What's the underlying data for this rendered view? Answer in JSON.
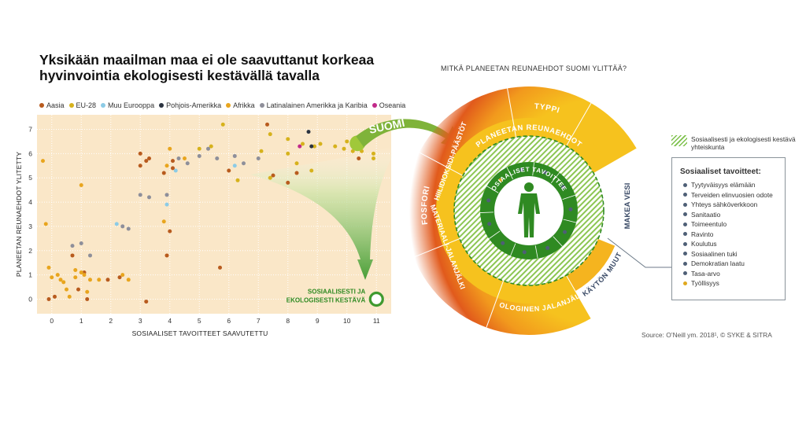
{
  "title_line1": "Yksikään maailman maa ei ole saavuttanut korkeaa",
  "title_line2": "hyvinvointia ekologisesti kestävällä tavalla",
  "legend": [
    {
      "label": "Aasia",
      "color": "#b85b1e"
    },
    {
      "label": "EU-28",
      "color": "#d6b21c"
    },
    {
      "label": "Muu Eurooppa",
      "color": "#8ccbe6"
    },
    {
      "label": "Pohjois-Amerikka",
      "color": "#2b3340"
    },
    {
      "label": "Afrikka",
      "color": "#e8a51e"
    },
    {
      "label": "Latinalainen Amerikka ja Karibia",
      "color": "#8e8f9a"
    },
    {
      "label": "Oseania",
      "color": "#c12a8a"
    }
  ],
  "right_question": "MITKÄ PLANEETAN REUNAEHDOT SUOMI YLITTÄÄ?",
  "finland_label": "SUOMI",
  "sustainable_label_line1": "SOSIAALISESTI JA",
  "sustainable_label_line2": "EKOLOGISESTI KESTÄVÄ",
  "wheel": {
    "outer_labels": [
      "FOSFORI",
      "TYPPI",
      "MAKEA VESI",
      "MAANKÄYTÖN MUUTOKSET",
      "EKOLOGINEN JALANJÄLKI",
      "MATERIAALI-JALANJÄLKI",
      "HIILIDIOKSIDI-PÄÄSTÖT"
    ],
    "ring_label": "PLANEETAN REUNAEHDOT",
    "inner_label": "SOSIAALISET TAVOITTEET"
  },
  "hatch_key_label": "Sosiaalisesti ja ekologisesti kestävä yhteiskunta",
  "key_title": "Sosiaaliset tavoitteet:",
  "key_items": [
    {
      "label": "Tyytyväisyys elämään",
      "color": "#4e5f76"
    },
    {
      "label": "Terveiden elinvuosien odote",
      "color": "#4e5f76"
    },
    {
      "label": "Yhteys sähköverkkoon",
      "color": "#4e5f76"
    },
    {
      "label": "Sanitaatio",
      "color": "#4e5f76"
    },
    {
      "label": "Toimeentulo",
      "color": "#4e5f76"
    },
    {
      "label": "Ravinto",
      "color": "#4e5f76"
    },
    {
      "label": "Koulutus",
      "color": "#4e5f76"
    },
    {
      "label": "Sosiaalinen tuki",
      "color": "#4e5f76"
    },
    {
      "label": "Demokratian laatu",
      "color": "#4e5f76"
    },
    {
      "label": "Tasa-arvo",
      "color": "#4e5f76"
    },
    {
      "label": "Työllisyys",
      "color": "#e0a81e"
    }
  ],
  "source": "Source: O’Neill ym. 2018¹, © SYKE & SITRA",
  "chart_data": {
    "type": "scatter",
    "xlabel": "SOSIAALISET TAVOITTEET SAAVUTETTU",
    "ylabel": "PLANEETAN REUNAEHDOT YLITETTY",
    "xlim": [
      -0.5,
      11.5
    ],
    "ylim": [
      -0.6,
      7.6
    ],
    "xticks": [
      0,
      1,
      2,
      3,
      4,
      5,
      6,
      7,
      8,
      9,
      10,
      11
    ],
    "yticks": [
      0,
      1,
      2,
      3,
      4,
      5,
      6,
      7
    ],
    "grid": true,
    "series": [
      {
        "name": "Aasia",
        "color": "#b85b1e",
        "points": [
          [
            -0.1,
            0
          ],
          [
            0.1,
            0.1
          ],
          [
            0.7,
            1.8
          ],
          [
            0.9,
            0.4
          ],
          [
            1.1,
            1.1
          ],
          [
            1.2,
            0
          ],
          [
            1.9,
            0.8
          ],
          [
            2.3,
            0.9
          ],
          [
            3.0,
            6.0
          ],
          [
            3.2,
            5.7
          ],
          [
            3.3,
            5.8
          ],
          [
            3.2,
            -0.1
          ],
          [
            3.8,
            5.2
          ],
          [
            4.0,
            2.8
          ],
          [
            3.9,
            1.8
          ],
          [
            4.1,
            5.7
          ],
          [
            5.7,
            1.3
          ],
          [
            6.0,
            5.3
          ],
          [
            7.3,
            7.2
          ],
          [
            7.5,
            5.1
          ],
          [
            8.0,
            4.8
          ],
          [
            8.3,
            5.2
          ],
          [
            10.4,
            5.8
          ],
          [
            4.1,
            5.4
          ],
          [
            3.0,
            5.5
          ]
        ]
      },
      {
        "name": "EU-28",
        "color": "#d6b21c",
        "points": [
          [
            5.0,
            6.2
          ],
          [
            5.4,
            6.3
          ],
          [
            5.8,
            7.2
          ],
          [
            6.3,
            4.9
          ],
          [
            7.1,
            6.1
          ],
          [
            7.4,
            6.8
          ],
          [
            7.4,
            5.0
          ],
          [
            8.0,
            6.6
          ],
          [
            8.0,
            6.0
          ],
          [
            8.3,
            5.6
          ],
          [
            8.5,
            6.4
          ],
          [
            8.9,
            6.3
          ],
          [
            9.1,
            6.4
          ],
          [
            9.6,
            6.3
          ],
          [
            9.9,
            6.2
          ],
          [
            10.0,
            6.5
          ],
          [
            10.2,
            6.1
          ],
          [
            10.5,
            6.1
          ],
          [
            10.9,
            5.8
          ],
          [
            10.9,
            6.0
          ],
          [
            8.8,
            5.3
          ]
        ]
      },
      {
        "name": "Muu Eurooppa",
        "color": "#8ccbe6",
        "points": [
          [
            2.2,
            3.1
          ],
          [
            3.9,
            3.9
          ],
          [
            4.2,
            5.3
          ],
          [
            6.2,
            5.5
          ]
        ]
      },
      {
        "name": "Pohjois-Amerikka",
        "color": "#2b3340",
        "points": [
          [
            8.7,
            6.9
          ],
          [
            8.8,
            6.3
          ]
        ]
      },
      {
        "name": "Afrikka",
        "color": "#e8a51e",
        "points": [
          [
            -0.3,
            5.7
          ],
          [
            -0.2,
            3.1
          ],
          [
            -0.1,
            1.3
          ],
          [
            0,
            0.9
          ],
          [
            0.2,
            1.0
          ],
          [
            0.3,
            0.8
          ],
          [
            0.4,
            0.7
          ],
          [
            0.5,
            0.4
          ],
          [
            0.6,
            0.1
          ],
          [
            0.8,
            1.2
          ],
          [
            0.8,
            0.9
          ],
          [
            1.0,
            1.1
          ],
          [
            1.1,
            1.0
          ],
          [
            1.2,
            0.3
          ],
          [
            1.3,
            0.8
          ],
          [
            1.6,
            0.8
          ],
          [
            2.4,
            1.0
          ],
          [
            2.6,
            0.8
          ],
          [
            1.0,
            4.7
          ],
          [
            3.8,
            3.2
          ],
          [
            3.9,
            5.5
          ],
          [
            4.0,
            6.2
          ],
          [
            4.5,
            5.8
          ]
        ]
      },
      {
        "name": "Latinalainen Amerikka ja Karibia",
        "color": "#8e8f9a",
        "points": [
          [
            0.7,
            2.2
          ],
          [
            1.0,
            2.3
          ],
          [
            1.3,
            1.8
          ],
          [
            2.6,
            2.9
          ],
          [
            3.0,
            4.3
          ],
          [
            3.3,
            4.2
          ],
          [
            3.9,
            4.3
          ],
          [
            4.3,
            5.8
          ],
          [
            4.6,
            5.6
          ],
          [
            5.0,
            5.9
          ],
          [
            5.3,
            6.2
          ],
          [
            5.6,
            5.8
          ],
          [
            6.2,
            5.9
          ],
          [
            6.5,
            5.6
          ],
          [
            7.0,
            5.8
          ],
          [
            2.4,
            3.0
          ]
        ]
      },
      {
        "name": "Oseania",
        "color": "#c12a8a",
        "points": [
          [
            8.4,
            6.3
          ]
        ]
      }
    ],
    "highlight": {
      "label": "SUOMI",
      "x": 10.2,
      "y": 6.2
    },
    "target": {
      "label": "SOSIAALISESTI JA EKOLOGISESTI KESTÄVÄ",
      "x": 11,
      "y": 0
    }
  }
}
